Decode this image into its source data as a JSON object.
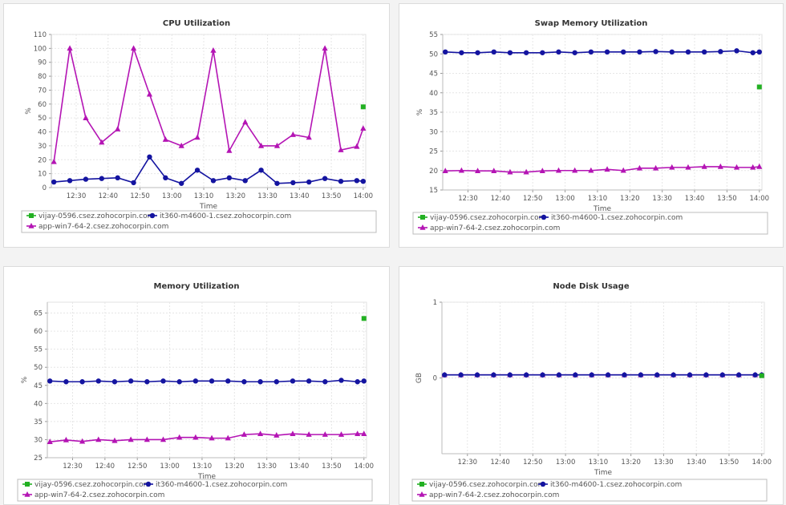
{
  "x_ticks": [
    "12:30",
    "12:40",
    "12:50",
    "13:00",
    "13:10",
    "13:20",
    "13:30",
    "13:40",
    "13:50",
    "14:00"
  ],
  "x_times": [
    "12:23",
    "12:28",
    "12:33",
    "12:38",
    "12:43",
    "12:48",
    "12:53",
    "12:58",
    "13:03",
    "13:08",
    "13:13",
    "13:18",
    "13:23",
    "13:28",
    "13:33",
    "13:38",
    "13:43",
    "13:48",
    "13:53",
    "13:58",
    "14:00"
  ],
  "legend": [
    {
      "name": "vijay-0596.csez.zohocorpin.com",
      "color": "#22b022",
      "marker": "square"
    },
    {
      "name": "it360-m4600-1.csez.zohocorpin.com",
      "color": "#1414a0",
      "marker": "circle"
    },
    {
      "name": "app-win7-64-2.csez.zohocorpin.com",
      "color": "#b414b4",
      "marker": "triangle"
    }
  ],
  "chart_data": [
    {
      "type": "line",
      "title": "CPU Utilization",
      "xlabel": "Time",
      "ylabel": "%",
      "ylim": [
        0,
        110
      ],
      "yticks": [
        0,
        10,
        20,
        30,
        40,
        50,
        60,
        70,
        80,
        90,
        100,
        110
      ],
      "grid": true,
      "legend_position": "bottom",
      "series": [
        {
          "name": "vijay-0596.csez.zohocorpin.com",
          "points": [
            [
              "14:00",
              58
            ]
          ]
        },
        {
          "name": "it360-m4600-1.csez.zohocorpin.com",
          "values": [
            4,
            5,
            6,
            6.5,
            7,
            3.5,
            22,
            7,
            3,
            12.5,
            5,
            7,
            5,
            12.5,
            3,
            3.5,
            4,
            6.5,
            4.5,
            5,
            4.5
          ]
        },
        {
          "name": "app-win7-64-2.csez.zohocorpin.com",
          "values": [
            18.5,
            100,
            50,
            32.5,
            42,
            100,
            67,
            34.5,
            30,
            36,
            98.5,
            26.5,
            47,
            30,
            30,
            38,
            36,
            100,
            27,
            29.5,
            42.5
          ]
        }
      ]
    },
    {
      "type": "line",
      "title": "Swap Memory Utilization",
      "xlabel": "Time",
      "ylabel": "%",
      "ylim": [
        15,
        55
      ],
      "yticks": [
        15,
        20,
        25,
        30,
        35,
        40,
        45,
        50,
        55
      ],
      "grid": true,
      "legend_position": "bottom",
      "series": [
        {
          "name": "vijay-0596.csez.zohocorpin.com",
          "points": [
            [
              "14:00",
              41.5
            ]
          ]
        },
        {
          "name": "it360-m4600-1.csez.zohocorpin.com",
          "values": [
            50.5,
            50.3,
            50.3,
            50.5,
            50.3,
            50.3,
            50.3,
            50.5,
            50.3,
            50.5,
            50.5,
            50.5,
            50.5,
            50.6,
            50.5,
            50.5,
            50.5,
            50.6,
            50.8,
            50.3,
            50.5
          ]
        },
        {
          "name": "app-win7-64-2.csez.zohocorpin.com",
          "values": [
            19.9,
            20,
            19.9,
            19.9,
            19.6,
            19.6,
            19.9,
            20,
            20,
            20,
            20.3,
            20,
            20.6,
            20.6,
            20.8,
            20.8,
            21,
            21,
            20.8,
            20.8,
            21
          ]
        }
      ]
    },
    {
      "type": "line",
      "title": "Memory Utilization",
      "xlabel": "Time",
      "ylabel": "%",
      "ylim": [
        25,
        68
      ],
      "yticks": [
        25,
        30,
        35,
        40,
        45,
        50,
        55,
        60,
        65
      ],
      "grid": true,
      "legend_position": "bottom",
      "series": [
        {
          "name": "vijay-0596.csez.zohocorpin.com",
          "points": [
            [
              "14:00",
              63.5
            ]
          ]
        },
        {
          "name": "it360-m4600-1.csez.zohocorpin.com",
          "values": [
            46.2,
            46,
            46,
            46.2,
            46,
            46.2,
            46,
            46.2,
            46,
            46.2,
            46.2,
            46.2,
            46,
            46,
            46,
            46.2,
            46.2,
            46,
            46.4,
            46,
            46.2
          ]
        },
        {
          "name": "app-win7-64-2.csez.zohocorpin.com",
          "values": [
            29.4,
            29.9,
            29.5,
            30,
            29.7,
            30,
            30,
            30,
            30.6,
            30.6,
            30.4,
            30.4,
            31.4,
            31.6,
            31.2,
            31.6,
            31.4,
            31.4,
            31.4,
            31.6,
            31.6
          ]
        }
      ]
    },
    {
      "type": "line",
      "title": "Node Disk Usage",
      "xlabel": "Time",
      "ylabel": "GB",
      "ylim": [
        -1,
        1
      ],
      "yticks": [
        0,
        1
      ],
      "grid": true,
      "legend_position": "bottom",
      "series": [
        {
          "name": "vijay-0596.csez.zohocorpin.com",
          "points": [
            [
              "14:00",
              0.03
            ]
          ]
        },
        {
          "name": "it360-m4600-1.csez.zohocorpin.com",
          "values": [
            0.04,
            0.04,
            0.04,
            0.04,
            0.04,
            0.04,
            0.04,
            0.04,
            0.04,
            0.04,
            0.04,
            0.04,
            0.04,
            0.04,
            0.04,
            0.04,
            0.04,
            0.04,
            0.04,
            0.04,
            0.04
          ]
        },
        {
          "name": "app-win7-64-2.csez.zohocorpin.com",
          "values": [
            0.04,
            0.04,
            0.04,
            0.04,
            0.04,
            0.04,
            0.04,
            0.04,
            0.04,
            0.04,
            0.04,
            0.04,
            0.04,
            0.04,
            0.04,
            0.04,
            0.04,
            0.04,
            0.04,
            0.04,
            0.04
          ]
        }
      ]
    }
  ]
}
